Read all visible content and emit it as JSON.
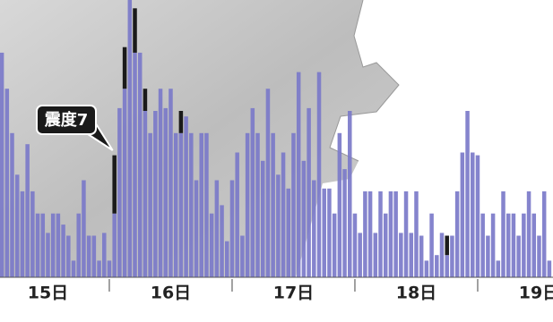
{
  "chart_data": {
    "type": "bar",
    "stacked": true,
    "categories": [
      null,
      null,
      null,
      null,
      null,
      null,
      null,
      null,
      null,
      null,
      null,
      null,
      null,
      null,
      null,
      null,
      null,
      null,
      null,
      null,
      null,
      null,
      null,
      null,
      null,
      null,
      null,
      null,
      null,
      null,
      null,
      null,
      null,
      null,
      null,
      null,
      null,
      null,
      null,
      null,
      null,
      null,
      null,
      null,
      null,
      null,
      null,
      null,
      null,
      null,
      null,
      null,
      null,
      null,
      null,
      null,
      null,
      null,
      null,
      null,
      null,
      null,
      null,
      null,
      null,
      null,
      null,
      null,
      null,
      null,
      null,
      null,
      null,
      null,
      null,
      null,
      null,
      null,
      null,
      null,
      null,
      null,
      null,
      null,
      null,
      null,
      null,
      null,
      null,
      null,
      null,
      null,
      null,
      null,
      null,
      null,
      null,
      null,
      null,
      null,
      null,
      null,
      null,
      null,
      null,
      null,
      null,
      null
    ],
    "series": [
      {
        "color": "#7b79c9",
        "values": [
          81,
          68,
          52,
          37,
          31,
          48,
          31,
          23,
          23,
          16,
          23,
          23,
          19,
          15,
          6,
          23,
          35,
          15,
          15,
          6,
          16,
          6,
          23,
          61,
          68,
          100,
          81,
          81,
          60,
          52,
          60,
          68,
          61,
          68,
          52,
          52,
          58,
          52,
          35,
          52,
          52,
          23,
          35,
          26,
          13,
          35,
          45,
          15,
          52,
          61,
          52,
          42,
          68,
          52,
          37,
          45,
          32,
          52,
          74,
          42,
          61,
          35,
          74,
          32,
          32,
          23,
          52,
          39,
          60,
          23,
          16,
          31,
          31,
          16,
          31,
          23,
          31,
          31,
          16,
          31,
          16,
          31,
          15,
          6,
          23,
          8,
          16,
          8,
          15,
          31,
          45,
          60,
          45,
          44,
          23,
          15,
          23,
          6,
          31,
          23,
          23,
          15,
          23,
          31,
          23,
          15,
          31,
          6
        ]
      },
      {
        "color": "#1a1a1a",
        "values": [
          0,
          0,
          0,
          0,
          0,
          0,
          0,
          0,
          0,
          0,
          0,
          0,
          0,
          0,
          0,
          0,
          0,
          0,
          0,
          0,
          0,
          0,
          21,
          0,
          15,
          0,
          16,
          0,
          8,
          0,
          0,
          0,
          0,
          0,
          0,
          8,
          0,
          0,
          0,
          0,
          0,
          0,
          0,
          0,
          0,
          0,
          0,
          0,
          0,
          0,
          0,
          0,
          0,
          0,
          0,
          0,
          0,
          0,
          0,
          0,
          0,
          0,
          0,
          0,
          0,
          0,
          0,
          0,
          0,
          0,
          0,
          0,
          0,
          0,
          0,
          0,
          0,
          0,
          0,
          0,
          0,
          0,
          0,
          0,
          0,
          0,
          0,
          7,
          0,
          0,
          0,
          0,
          0,
          0,
          0,
          0,
          0,
          0,
          0,
          0,
          0,
          0,
          0,
          0,
          0,
          0,
          0,
          0
        ]
      }
    ],
    "ylim": [
      0,
      100
    ],
    "xticks": [
      {
        "value": 9,
        "label": "15日"
      },
      {
        "value": 33,
        "label": "16日"
      },
      {
        "value": 57,
        "label": "17日"
      },
      {
        "value": 81,
        "label": "18日"
      },
      {
        "value": 105,
        "label": "19日"
      }
    ],
    "annotation": {
      "text": "震度7",
      "index": 22
    }
  }
}
